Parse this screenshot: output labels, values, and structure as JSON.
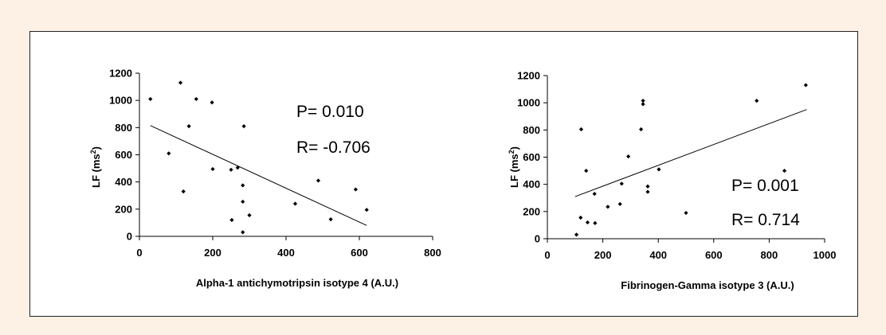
{
  "colors": {
    "page_background": "#fdf0e4",
    "panel": "#ffffff",
    "ink": "#000000"
  },
  "chart_data": [
    {
      "type": "scatter",
      "xlabel": "Alpha-1 antichymotripsin isotype 4 (A.U.)",
      "ylabel": "LF (ms2)",
      "ylabel_base": "LF (ms",
      "ylabel_sup": "2",
      "ylabel_close": ")",
      "xlim": [
        0,
        800
      ],
      "ylim": [
        0,
        1200
      ],
      "xticks": [
        0,
        200,
        400,
        600,
        800
      ],
      "yticks": [
        0,
        200,
        400,
        600,
        800,
        1000,
        1200
      ],
      "annotations": [
        "P= 0.010",
        "R= -0.706"
      ],
      "trendline": {
        "x": [
          30,
          620
        ],
        "y": [
          815,
          80
        ]
      },
      "points": [
        {
          "x": 30,
          "y": 1010
        },
        {
          "x": 112,
          "y": 1130
        },
        {
          "x": 155,
          "y": 1010
        },
        {
          "x": 198,
          "y": 985
        },
        {
          "x": 135,
          "y": 810
        },
        {
          "x": 285,
          "y": 810
        },
        {
          "x": 80,
          "y": 610
        },
        {
          "x": 200,
          "y": 495
        },
        {
          "x": 250,
          "y": 490
        },
        {
          "x": 268,
          "y": 505
        },
        {
          "x": 120,
          "y": 330
        },
        {
          "x": 282,
          "y": 375
        },
        {
          "x": 282,
          "y": 255
        },
        {
          "x": 300,
          "y": 155
        },
        {
          "x": 252,
          "y": 120
        },
        {
          "x": 282,
          "y": 30
        },
        {
          "x": 425,
          "y": 240
        },
        {
          "x": 488,
          "y": 410
        },
        {
          "x": 522,
          "y": 125
        },
        {
          "x": 590,
          "y": 345
        },
        {
          "x": 620,
          "y": 195
        }
      ]
    },
    {
      "type": "scatter",
      "xlabel": "Fibrinogen-Gamma isotype 3 (A.U.)",
      "ylabel": "LF (ms2)",
      "ylabel_base": "LF (ms",
      "ylabel_sup": "2",
      "ylabel_close": ")",
      "xlim": [
        0,
        1000
      ],
      "ylim": [
        0,
        1200
      ],
      "xticks": [
        0,
        200,
        400,
        600,
        800,
        1000
      ],
      "yticks": [
        0,
        200,
        400,
        600,
        800,
        1000,
        1200
      ],
      "annotations": [
        "P= 0.001",
        "R= 0.714"
      ],
      "trendline": {
        "x": [
          100,
          935
        ],
        "y": [
          310,
          950
        ]
      },
      "points": [
        {
          "x": 105,
          "y": 30
        },
        {
          "x": 120,
          "y": 155
        },
        {
          "x": 122,
          "y": 805
        },
        {
          "x": 140,
          "y": 500
        },
        {
          "x": 145,
          "y": 120
        },
        {
          "x": 170,
          "y": 330
        },
        {
          "x": 172,
          "y": 115
        },
        {
          "x": 218,
          "y": 235
        },
        {
          "x": 262,
          "y": 255
        },
        {
          "x": 268,
          "y": 405
        },
        {
          "x": 292,
          "y": 605
        },
        {
          "x": 338,
          "y": 805
        },
        {
          "x": 345,
          "y": 990
        },
        {
          "x": 345,
          "y": 1015
        },
        {
          "x": 362,
          "y": 385
        },
        {
          "x": 362,
          "y": 345
        },
        {
          "x": 402,
          "y": 510
        },
        {
          "x": 500,
          "y": 190
        },
        {
          "x": 755,
          "y": 1015
        },
        {
          "x": 855,
          "y": 500
        },
        {
          "x": 932,
          "y": 1130
        }
      ]
    }
  ]
}
